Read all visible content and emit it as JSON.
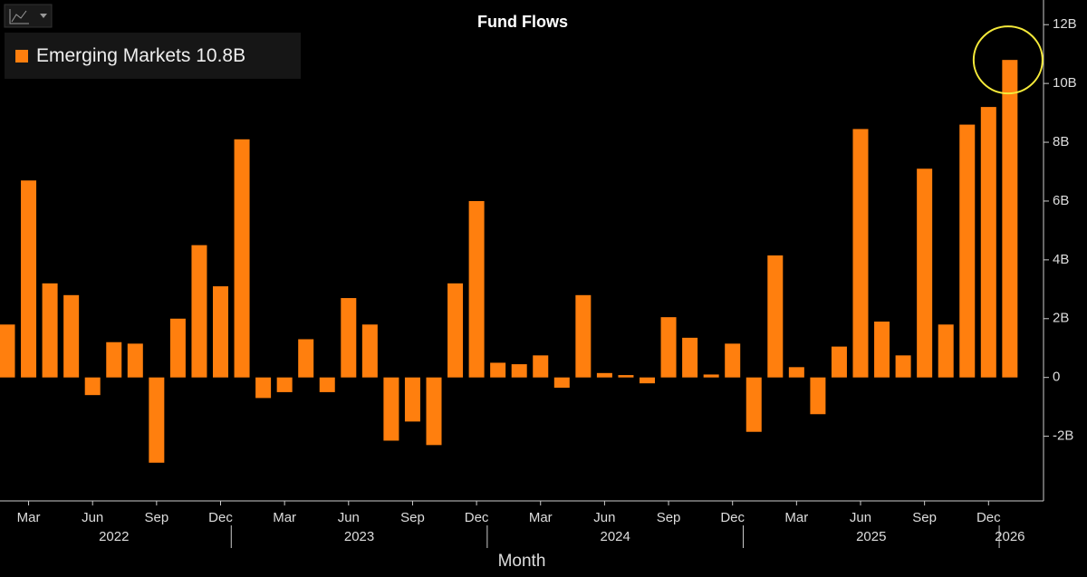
{
  "chart_data": {
    "type": "bar",
    "title": "Fund Flows",
    "x_label": "Month",
    "categories": [
      null,
      "Mar",
      null,
      null,
      "Jun",
      null,
      null,
      "Sep",
      null,
      null,
      "Dec",
      null,
      null,
      "Mar",
      null,
      null,
      "Jun",
      null,
      null,
      "Sep",
      null,
      null,
      "Dec",
      null,
      null,
      "Mar",
      null,
      null,
      "Jun",
      null,
      null,
      "Sep",
      null,
      null,
      "Dec",
      null,
      null,
      "Mar",
      null,
      null,
      "Jun",
      null,
      null,
      "Sep",
      null,
      null,
      "Dec",
      null
    ],
    "year_labels": [
      "2022",
      "2023",
      "2024",
      "2025",
      "2026"
    ],
    "series": [
      {
        "name": "Emerging Markets",
        "color": "#ff7f0e",
        "values": [
          1.8,
          6.7,
          3.2,
          2.8,
          -0.6,
          1.2,
          1.15,
          -2.9,
          2.0,
          4.5,
          3.1,
          8.1,
          -0.7,
          -0.5,
          1.3,
          -0.5,
          2.7,
          1.8,
          -2.15,
          -1.5,
          -2.3,
          3.2,
          6.0,
          0.5,
          0.45,
          0.75,
          -0.35,
          2.8,
          0.15,
          0.08,
          -0.2,
          2.05,
          1.35,
          0.1,
          1.15,
          -1.85,
          4.15,
          0.35,
          -1.25,
          1.05,
          8.45,
          1.9,
          0.75,
          7.1,
          1.8,
          8.6,
          9.2,
          10.8
        ],
        "last_value_label": "10.8B"
      }
    ],
    "ylim": [
      -4.2,
      12.5
    ],
    "yticks": [
      {
        "value": -2,
        "label": "-2B"
      },
      0,
      {
        "value": 2,
        "label": "2B"
      },
      {
        "value": 4,
        "label": "4B"
      },
      {
        "value": 6,
        "label": "6B"
      },
      {
        "value": 8,
        "label": "8B"
      },
      {
        "value": 10,
        "label": "10B"
      },
      {
        "value": 12,
        "label": "12B"
      }
    ]
  }
}
